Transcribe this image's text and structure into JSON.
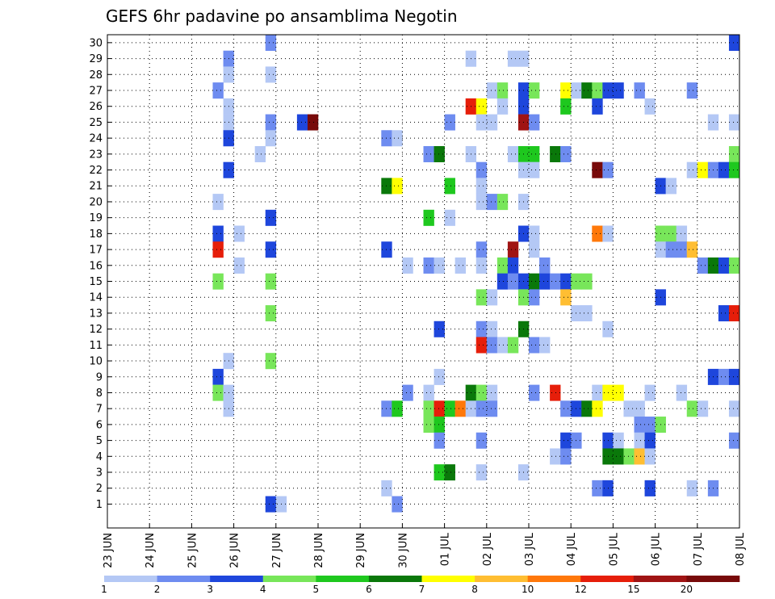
{
  "chart_data": {
    "type": "heatmap",
    "title": "GEFS 6hr padavine po ansamblima Negotin",
    "x_ticks": [
      "23 JUN",
      "24 JUN",
      "25 JUN",
      "26 JUN",
      "27 JUN",
      "28 JUN",
      "29 JUN",
      "30 JUN",
      "01 JUL",
      "02 JUL",
      "03 JUL",
      "04 JUL",
      "05 JUL",
      "06 JUL",
      "07 JUL",
      "08 JUL"
    ],
    "y_ticks": [
      1,
      2,
      3,
      4,
      5,
      6,
      7,
      8,
      9,
      10,
      11,
      12,
      13,
      14,
      15,
      16,
      17,
      18,
      19,
      20,
      21,
      22,
      23,
      24,
      25,
      26,
      27,
      28,
      29,
      30
    ],
    "time_steps": 60,
    "time_step_hours": 6,
    "members": 31,
    "grid": true,
    "legend_position": "bottom",
    "legend": {
      "labels": [
        "1",
        "2",
        "3",
        "4",
        "5",
        "6",
        "7",
        "8",
        "10",
        "12",
        "15",
        "20"
      ],
      "colors": [
        "#b4c8f5",
        "#6e8cf0",
        "#1e46dc",
        "#78e65a",
        "#1ec81e",
        "#0a780a",
        "#ffff00",
        "#ffbe32",
        "#ff780a",
        "#e61e0a",
        "#a01414",
        "#780a0a"
      ]
    },
    "cells": [
      {
        "member": 30,
        "t": 15,
        "level": 2
      },
      {
        "member": 30,
        "t": 59,
        "level": 3
      },
      {
        "member": 29,
        "t": 11,
        "level": 2
      },
      {
        "member": 29,
        "t": 34,
        "level": 1
      },
      {
        "member": 29,
        "t": 38,
        "level": 1
      },
      {
        "member": 29,
        "t": 39,
        "level": 1
      },
      {
        "member": 28,
        "t": 11,
        "level": 1
      },
      {
        "member": 28,
        "t": 15,
        "level": 1
      },
      {
        "member": 27,
        "t": 10,
        "level": 2
      },
      {
        "member": 27,
        "t": 36,
        "level": 1
      },
      {
        "member": 27,
        "t": 37,
        "level": 4
      },
      {
        "member": 27,
        "t": 39,
        "level": 3
      },
      {
        "member": 27,
        "t": 40,
        "level": 4
      },
      {
        "member": 27,
        "t": 43,
        "level": 7
      },
      {
        "member": 27,
        "t": 44,
        "level": 1
      },
      {
        "member": 27,
        "t": 45,
        "level": 6
      },
      {
        "member": 27,
        "t": 46,
        "level": 4
      },
      {
        "member": 27,
        "t": 47,
        "level": 3
      },
      {
        "member": 27,
        "t": 48,
        "level": 3
      },
      {
        "member": 27,
        "t": 50,
        "level": 2
      },
      {
        "member": 27,
        "t": 55,
        "level": 2
      },
      {
        "member": 26,
        "t": 11,
        "level": 1
      },
      {
        "member": 26,
        "t": 34,
        "level": 10
      },
      {
        "member": 26,
        "t": 35,
        "level": 7
      },
      {
        "member": 26,
        "t": 37,
        "level": 1
      },
      {
        "member": 26,
        "t": 39,
        "level": 3
      },
      {
        "member": 26,
        "t": 43,
        "level": 5
      },
      {
        "member": 26,
        "t": 46,
        "level": 3
      },
      {
        "member": 26,
        "t": 51,
        "level": 1
      },
      {
        "member": 25,
        "t": 11,
        "level": 1
      },
      {
        "member": 25,
        "t": 15,
        "level": 2
      },
      {
        "member": 25,
        "t": 18,
        "level": 3
      },
      {
        "member": 25,
        "t": 19,
        "level": 12
      },
      {
        "member": 25,
        "t": 32,
        "level": 2
      },
      {
        "member": 25,
        "t": 35,
        "level": 1
      },
      {
        "member": 25,
        "t": 36,
        "level": 1
      },
      {
        "member": 25,
        "t": 39,
        "level": 11
      },
      {
        "member": 25,
        "t": 40,
        "level": 2
      },
      {
        "member": 25,
        "t": 57,
        "level": 1
      },
      {
        "member": 25,
        "t": 59,
        "level": 1
      },
      {
        "member": 24,
        "t": 11,
        "level": 3
      },
      {
        "member": 24,
        "t": 15,
        "level": 1
      },
      {
        "member": 24,
        "t": 26,
        "level": 2
      },
      {
        "member": 24,
        "t": 27,
        "level": 1
      },
      {
        "member": 23,
        "t": 14,
        "level": 1
      },
      {
        "member": 23,
        "t": 30,
        "level": 2
      },
      {
        "member": 23,
        "t": 31,
        "level": 6
      },
      {
        "member": 23,
        "t": 34,
        "level": 1
      },
      {
        "member": 23,
        "t": 38,
        "level": 1
      },
      {
        "member": 23,
        "t": 39,
        "level": 5
      },
      {
        "member": 23,
        "t": 40,
        "level": 5
      },
      {
        "member": 23,
        "t": 42,
        "level": 6
      },
      {
        "member": 23,
        "t": 43,
        "level": 2
      },
      {
        "member": 23,
        "t": 59,
        "level": 4
      },
      {
        "member": 22,
        "t": 11,
        "level": 3
      },
      {
        "member": 22,
        "t": 35,
        "level": 2
      },
      {
        "member": 22,
        "t": 39,
        "level": 1
      },
      {
        "member": 22,
        "t": 40,
        "level": 1
      },
      {
        "member": 22,
        "t": 46,
        "level": 12
      },
      {
        "member": 22,
        "t": 47,
        "level": 2
      },
      {
        "member": 22,
        "t": 55,
        "level": 1
      },
      {
        "member": 22,
        "t": 56,
        "level": 7
      },
      {
        "member": 22,
        "t": 57,
        "level": 2
      },
      {
        "member": 22,
        "t": 58,
        "level": 3
      },
      {
        "member": 22,
        "t": 59,
        "level": 5
      },
      {
        "member": 21,
        "t": 26,
        "level": 6
      },
      {
        "member": 21,
        "t": 27,
        "level": 7
      },
      {
        "member": 21,
        "t": 32,
        "level": 5
      },
      {
        "member": 21,
        "t": 35,
        "level": 1
      },
      {
        "member": 21,
        "t": 52,
        "level": 3
      },
      {
        "member": 21,
        "t": 53,
        "level": 1
      },
      {
        "member": 20,
        "t": 10,
        "level": 1
      },
      {
        "member": 20,
        "t": 35,
        "level": 1
      },
      {
        "member": 20,
        "t": 36,
        "level": 2
      },
      {
        "member": 20,
        "t": 37,
        "level": 4
      },
      {
        "member": 20,
        "t": 39,
        "level": 1
      },
      {
        "member": 19,
        "t": 15,
        "level": 3
      },
      {
        "member": 19,
        "t": 30,
        "level": 5
      },
      {
        "member": 19,
        "t": 32,
        "level": 1
      },
      {
        "member": 18,
        "t": 10,
        "level": 3
      },
      {
        "member": 18,
        "t": 12,
        "level": 1
      },
      {
        "member": 18,
        "t": 39,
        "level": 3
      },
      {
        "member": 18,
        "t": 40,
        "level": 1
      },
      {
        "member": 18,
        "t": 46,
        "level": 9
      },
      {
        "member": 18,
        "t": 47,
        "level": 1
      },
      {
        "member": 18,
        "t": 52,
        "level": 4
      },
      {
        "member": 18,
        "t": 53,
        "level": 4
      },
      {
        "member": 18,
        "t": 54,
        "level": 1
      },
      {
        "member": 17,
        "t": 10,
        "level": 10
      },
      {
        "member": 17,
        "t": 15,
        "level": 3
      },
      {
        "member": 17,
        "t": 26,
        "level": 3
      },
      {
        "member": 17,
        "t": 35,
        "level": 2
      },
      {
        "member": 17,
        "t": 38,
        "level": 11
      },
      {
        "member": 17,
        "t": 40,
        "level": 1
      },
      {
        "member": 17,
        "t": 52,
        "level": 1
      },
      {
        "member": 17,
        "t": 53,
        "level": 2
      },
      {
        "member": 17,
        "t": 54,
        "level": 2
      },
      {
        "member": 17,
        "t": 55,
        "level": 8
      },
      {
        "member": 16,
        "t": 12,
        "level": 1
      },
      {
        "member": 16,
        "t": 28,
        "level": 1
      },
      {
        "member": 16,
        "t": 30,
        "level": 2
      },
      {
        "member": 16,
        "t": 31,
        "level": 1
      },
      {
        "member": 16,
        "t": 33,
        "level": 1
      },
      {
        "member": 16,
        "t": 35,
        "level": 1
      },
      {
        "member": 16,
        "t": 37,
        "level": 4
      },
      {
        "member": 16,
        "t": 38,
        "level": 3
      },
      {
        "member": 16,
        "t": 41,
        "level": 2
      },
      {
        "member": 16,
        "t": 56,
        "level": 2
      },
      {
        "member": 16,
        "t": 57,
        "level": 6
      },
      {
        "member": 16,
        "t": 58,
        "level": 3
      },
      {
        "member": 16,
        "t": 59,
        "level": 4
      },
      {
        "member": 15,
        "t": 10,
        "level": 4
      },
      {
        "member": 15,
        "t": 15,
        "level": 4
      },
      {
        "member": 15,
        "t": 37,
        "level": 3
      },
      {
        "member": 15,
        "t": 38,
        "level": 2
      },
      {
        "member": 15,
        "t": 39,
        "level": 3
      },
      {
        "member": 15,
        "t": 40,
        "level": 6
      },
      {
        "member": 15,
        "t": 41,
        "level": 3
      },
      {
        "member": 15,
        "t": 42,
        "level": 2
      },
      {
        "member": 15,
        "t": 43,
        "level": 3
      },
      {
        "member": 15,
        "t": 44,
        "level": 4
      },
      {
        "member": 15,
        "t": 45,
        "level": 4
      },
      {
        "member": 14,
        "t": 35,
        "level": 4
      },
      {
        "member": 14,
        "t": 36,
        "level": 1
      },
      {
        "member": 14,
        "t": 39,
        "level": 4
      },
      {
        "member": 14,
        "t": 40,
        "level": 2
      },
      {
        "member": 14,
        "t": 43,
        "level": 8
      },
      {
        "member": 14,
        "t": 52,
        "level": 3
      },
      {
        "member": 13,
        "t": 15,
        "level": 4
      },
      {
        "member": 13,
        "t": 44,
        "level": 1
      },
      {
        "member": 13,
        "t": 45,
        "level": 1
      },
      {
        "member": 13,
        "t": 58,
        "level": 3
      },
      {
        "member": 13,
        "t": 59,
        "level": 10
      },
      {
        "member": 12,
        "t": 31,
        "level": 3
      },
      {
        "member": 12,
        "t": 35,
        "level": 2
      },
      {
        "member": 12,
        "t": 36,
        "level": 1
      },
      {
        "member": 12,
        "t": 39,
        "level": 6
      },
      {
        "member": 12,
        "t": 47,
        "level": 1
      },
      {
        "member": 11,
        "t": 35,
        "level": 10
      },
      {
        "member": 11,
        "t": 36,
        "level": 2
      },
      {
        "member": 11,
        "t": 37,
        "level": 1
      },
      {
        "member": 11,
        "t": 38,
        "level": 4
      },
      {
        "member": 11,
        "t": 40,
        "level": 2
      },
      {
        "member": 11,
        "t": 41,
        "level": 1
      },
      {
        "member": 10,
        "t": 11,
        "level": 1
      },
      {
        "member": 10,
        "t": 15,
        "level": 4
      },
      {
        "member": 9,
        "t": 10,
        "level": 3
      },
      {
        "member": 9,
        "t": 31,
        "level": 1
      },
      {
        "member": 9,
        "t": 57,
        "level": 3
      },
      {
        "member": 9,
        "t": 58,
        "level": 2
      },
      {
        "member": 9,
        "t": 59,
        "level": 3
      },
      {
        "member": 8,
        "t": 10,
        "level": 4
      },
      {
        "member": 8,
        "t": 11,
        "level": 1
      },
      {
        "member": 8,
        "t": 28,
        "level": 2
      },
      {
        "member": 8,
        "t": 30,
        "level": 1
      },
      {
        "member": 8,
        "t": 34,
        "level": 6
      },
      {
        "member": 8,
        "t": 35,
        "level": 4
      },
      {
        "member": 8,
        "t": 36,
        "level": 1
      },
      {
        "member": 8,
        "t": 40,
        "level": 2
      },
      {
        "member": 8,
        "t": 42,
        "level": 10
      },
      {
        "member": 8,
        "t": 46,
        "level": 1
      },
      {
        "member": 8,
        "t": 47,
        "level": 7
      },
      {
        "member": 8,
        "t": 48,
        "level": 7
      },
      {
        "member": 8,
        "t": 51,
        "level": 1
      },
      {
        "member": 8,
        "t": 54,
        "level": 1
      },
      {
        "member": 7,
        "t": 11,
        "level": 1
      },
      {
        "member": 7,
        "t": 26,
        "level": 2
      },
      {
        "member": 7,
        "t": 27,
        "level": 5
      },
      {
        "member": 7,
        "t": 30,
        "level": 4
      },
      {
        "member": 7,
        "t": 31,
        "level": 10
      },
      {
        "member": 7,
        "t": 32,
        "level": 5
      },
      {
        "member": 7,
        "t": 33,
        "level": 9
      },
      {
        "member": 7,
        "t": 34,
        "level": 1
      },
      {
        "member": 7,
        "t": 35,
        "level": 2
      },
      {
        "member": 7,
        "t": 36,
        "level": 2
      },
      {
        "member": 7,
        "t": 43,
        "level": 2
      },
      {
        "member": 7,
        "t": 44,
        "level": 3
      },
      {
        "member": 7,
        "t": 45,
        "level": 6
      },
      {
        "member": 7,
        "t": 46,
        "level": 7
      },
      {
        "member": 7,
        "t": 49,
        "level": 1
      },
      {
        "member": 7,
        "t": 50,
        "level": 1
      },
      {
        "member": 7,
        "t": 55,
        "level": 4
      },
      {
        "member": 7,
        "t": 56,
        "level": 1
      },
      {
        "member": 7,
        "t": 59,
        "level": 1
      },
      {
        "member": 6,
        "t": 30,
        "level": 4
      },
      {
        "member": 6,
        "t": 31,
        "level": 5
      },
      {
        "member": 6,
        "t": 50,
        "level": 2
      },
      {
        "member": 6,
        "t": 51,
        "level": 2
      },
      {
        "member": 6,
        "t": 52,
        "level": 4
      },
      {
        "member": 5,
        "t": 31,
        "level": 2
      },
      {
        "member": 5,
        "t": 35,
        "level": 2
      },
      {
        "member": 5,
        "t": 43,
        "level": 3
      },
      {
        "member": 5,
        "t": 44,
        "level": 2
      },
      {
        "member": 5,
        "t": 47,
        "level": 3
      },
      {
        "member": 5,
        "t": 48,
        "level": 1
      },
      {
        "member": 5,
        "t": 50,
        "level": 1
      },
      {
        "member": 5,
        "t": 51,
        "level": 3
      },
      {
        "member": 5,
        "t": 59,
        "level": 2
      },
      {
        "member": 4,
        "t": 42,
        "level": 1
      },
      {
        "member": 4,
        "t": 43,
        "level": 2
      },
      {
        "member": 4,
        "t": 47,
        "level": 6
      },
      {
        "member": 4,
        "t": 48,
        "level": 6
      },
      {
        "member": 4,
        "t": 49,
        "level": 4
      },
      {
        "member": 4,
        "t": 50,
        "level": 8
      },
      {
        "member": 4,
        "t": 51,
        "level": 1
      },
      {
        "member": 3,
        "t": 31,
        "level": 5
      },
      {
        "member": 3,
        "t": 32,
        "level": 6
      },
      {
        "member": 3,
        "t": 35,
        "level": 1
      },
      {
        "member": 3,
        "t": 39,
        "level": 1
      },
      {
        "member": 2,
        "t": 26,
        "level": 1
      },
      {
        "member": 2,
        "t": 46,
        "level": 2
      },
      {
        "member": 2,
        "t": 47,
        "level": 3
      },
      {
        "member": 2,
        "t": 51,
        "level": 3
      },
      {
        "member": 2,
        "t": 55,
        "level": 1
      },
      {
        "member": 2,
        "t": 57,
        "level": 2
      },
      {
        "member": 1,
        "t": 15,
        "level": 3
      },
      {
        "member": 1,
        "t": 16,
        "level": 1
      },
      {
        "member": 1,
        "t": 27,
        "level": 2
      }
    ]
  }
}
